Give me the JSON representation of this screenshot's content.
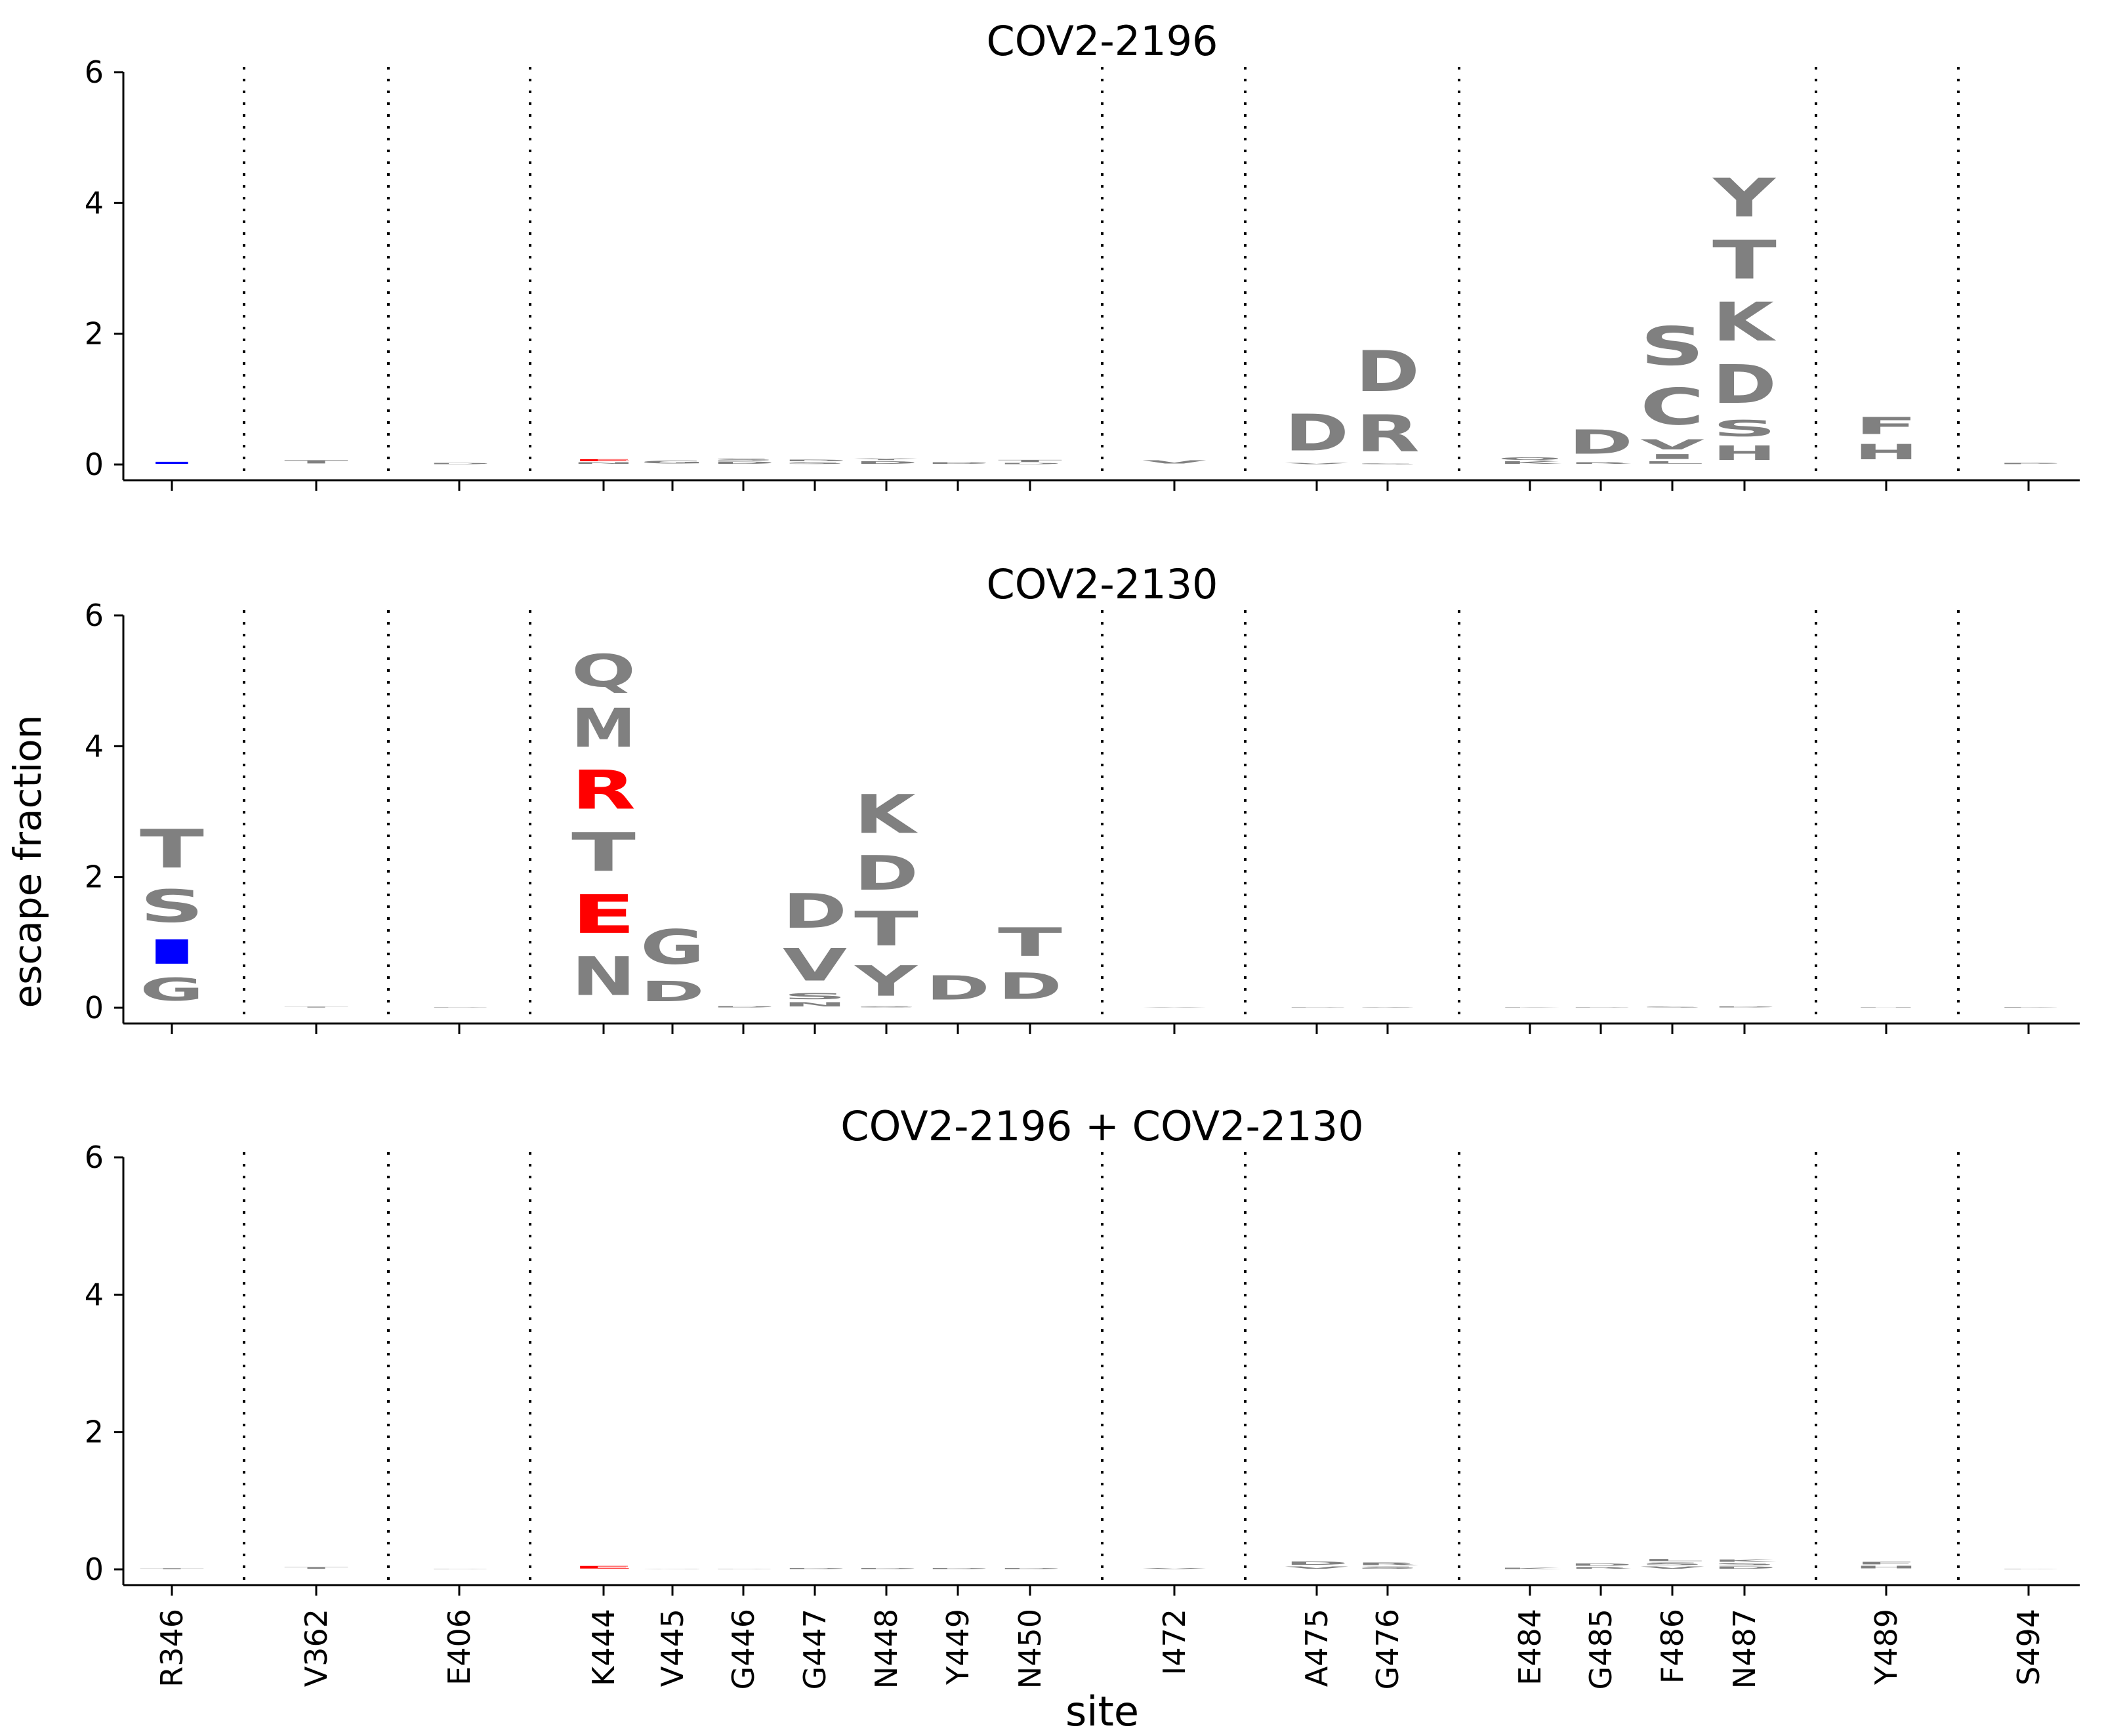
{
  "figure": {
    "ylabel": "escape fraction",
    "xlabel": "site"
  },
  "colors": {
    "default_letter": "#808080",
    "highlight_red": "#ff0000",
    "highlight_blue": "#0000ff",
    "axis": "#000000"
  },
  "chart_data": [
    {
      "type": "logo",
      "title": "COV2-2196",
      "ylim": [
        0,
        6
      ],
      "yticks": [
        0,
        2,
        4,
        6
      ],
      "sites": [
        "R346",
        "V362",
        "E406",
        "K444",
        "V445",
        "G446",
        "G447",
        "N448",
        "Y449",
        "N450",
        "I472",
        "A475",
        "G476",
        "E484",
        "G485",
        "F486",
        "N487",
        "Y489",
        "S494"
      ],
      "letters": [
        {
          "site": "R346",
          "stack": [
            {
              "aa": "I",
              "value": 0.05,
              "color": "#0000ff"
            }
          ]
        },
        {
          "site": "V362",
          "stack": [
            {
              "aa": "T",
              "value": 0.08
            }
          ]
        },
        {
          "site": "E406",
          "stack": [
            {
              "aa": "D",
              "value": 0.03
            }
          ]
        },
        {
          "site": "K444",
          "stack": [
            {
              "aa": "N",
              "value": 0.04
            },
            {
              "aa": "E",
              "value": 0.05,
              "color": "#ff0000"
            }
          ]
        },
        {
          "site": "V445",
          "stack": [
            {
              "aa": "G",
              "value": 0.07
            }
          ]
        },
        {
          "site": "G446",
          "stack": [
            {
              "aa": "D",
              "value": 0.05
            },
            {
              "aa": "S",
              "value": 0.05
            }
          ]
        },
        {
          "site": "G447",
          "stack": [
            {
              "aa": "S",
              "value": 0.04
            },
            {
              "aa": "D",
              "value": 0.04
            }
          ]
        },
        {
          "site": "N448",
          "stack": [
            {
              "aa": "D",
              "value": 0.06
            },
            {
              "aa": "Y",
              "value": 0.04
            }
          ]
        },
        {
          "site": "Y449",
          "stack": [
            {
              "aa": "D",
              "value": 0.04
            }
          ]
        },
        {
          "site": "N450",
          "stack": [
            {
              "aa": "D",
              "value": 0.03
            },
            {
              "aa": "T",
              "value": 0.05
            }
          ]
        },
        {
          "site": "I472",
          "stack": [
            {
              "aa": "V",
              "value": 0.08
            }
          ]
        },
        {
          "site": "A475",
          "stack": [
            {
              "aa": "V",
              "value": 0.03
            },
            {
              "aa": "D",
              "value": 0.9
            }
          ]
        },
        {
          "site": "G476",
          "stack": [
            {
              "aa": "S",
              "value": 0.02
            },
            {
              "aa": "R",
              "value": 0.9
            },
            {
              "aa": "D",
              "value": 1.0
            }
          ]
        },
        {
          "site": "E484",
          "stack": [
            {
              "aa": "K",
              "value": 0.06
            },
            {
              "aa": "Q",
              "value": 0.06
            }
          ]
        },
        {
          "site": "G485",
          "stack": [
            {
              "aa": "R",
              "value": 0.04
            },
            {
              "aa": "D",
              "value": 0.6
            }
          ]
        },
        {
          "site": "F486",
          "stack": [
            {
              "aa": "L",
              "value": 0.06
            },
            {
              "aa": "I",
              "value": 0.12
            },
            {
              "aa": "V",
              "value": 0.25
            },
            {
              "aa": "C",
              "value": 0.9
            },
            {
              "aa": "S",
              "value": 0.95
            }
          ]
        },
        {
          "site": "N487",
          "stack": [
            {
              "aa": "H",
              "value": 0.35
            },
            {
              "aa": "S",
              "value": 0.4
            },
            {
              "aa": "D",
              "value": 0.95
            },
            {
              "aa": "K",
              "value": 0.95
            },
            {
              "aa": "T",
              "value": 0.95
            },
            {
              "aa": "Y",
              "value": 0.95
            }
          ]
        },
        {
          "site": "Y489",
          "stack": [
            {
              "aa": "H",
              "value": 0.38
            },
            {
              "aa": "F",
              "value": 0.42
            }
          ]
        },
        {
          "site": "S494",
          "stack": [
            {
              "aa": "P",
              "value": 0.03
            }
          ]
        }
      ]
    },
    {
      "type": "logo",
      "title": "COV2-2130",
      "ylim": [
        0,
        6
      ],
      "yticks": [
        0,
        2,
        4,
        6
      ],
      "sites": [
        "R346",
        "V362",
        "E406",
        "K444",
        "V445",
        "G446",
        "G447",
        "N448",
        "Y449",
        "N450",
        "I472",
        "A475",
        "G476",
        "E484",
        "G485",
        "F486",
        "N487",
        "Y489",
        "S494"
      ],
      "letters": [
        {
          "site": "R346",
          "stack": [
            {
              "aa": "G",
              "value": 0.55
            },
            {
              "aa": "I",
              "value": 0.6,
              "color": "#0000ff"
            },
            {
              "aa": "S",
              "value": 0.8
            },
            {
              "aa": "T",
              "value": 0.95
            }
          ]
        },
        {
          "site": "V362",
          "stack": [
            {
              "aa": "T",
              "value": 0.02
            }
          ]
        },
        {
          "site": "E406",
          "stack": [
            {
              "aa": "D",
              "value": 0.01
            }
          ]
        },
        {
          "site": "K444",
          "stack": [
            {
              "aa": "N",
              "value": 0.95
            },
            {
              "aa": "E",
              "value": 0.95,
              "color": "#ff0000"
            },
            {
              "aa": "T",
              "value": 0.95
            },
            {
              "aa": "R",
              "value": 0.95,
              "color": "#ff0000"
            },
            {
              "aa": "M",
              "value": 0.95
            },
            {
              "aa": "Q",
              "value": 0.8
            }
          ]
        },
        {
          "site": "V445",
          "stack": [
            {
              "aa": "D",
              "value": 0.5
            },
            {
              "aa": "G",
              "value": 0.85
            }
          ]
        },
        {
          "site": "G446",
          "stack": [
            {
              "aa": "D",
              "value": 0.03
            }
          ]
        },
        {
          "site": "G447",
          "stack": [
            {
              "aa": "N",
              "value": 0.1
            },
            {
              "aa": "S",
              "value": 0.15
            },
            {
              "aa": "V",
              "value": 0.8
            },
            {
              "aa": "D",
              "value": 0.85
            }
          ]
        },
        {
          "site": "N448",
          "stack": [
            {
              "aa": "S",
              "value": 0.03
            },
            {
              "aa": "Y",
              "value": 0.75
            },
            {
              "aa": "T",
              "value": 0.85
            },
            {
              "aa": "D",
              "value": 0.85
            },
            {
              "aa": "K",
              "value": 0.95
            }
          ]
        },
        {
          "site": "Y449",
          "stack": [
            {
              "aa": "D",
              "value": 0.6
            }
          ]
        },
        {
          "site": "N450",
          "stack": [
            {
              "aa": "D",
              "value": 0.65
            },
            {
              "aa": "T",
              "value": 0.7
            }
          ]
        },
        {
          "site": "I472",
          "stack": [
            {
              "aa": "V",
              "value": 0.01
            }
          ]
        },
        {
          "site": "A475",
          "stack": [
            {
              "aa": "D",
              "value": 0.01
            }
          ]
        },
        {
          "site": "G476",
          "stack": [
            {
              "aa": "S",
              "value": 0.01
            }
          ]
        },
        {
          "site": "E484",
          "stack": [
            {
              "aa": "K",
              "value": 0.01
            }
          ]
        },
        {
          "site": "G485",
          "stack": [
            {
              "aa": "D",
              "value": 0.01
            }
          ]
        },
        {
          "site": "F486",
          "stack": [
            {
              "aa": "S",
              "value": 0.02
            }
          ]
        },
        {
          "site": "N487",
          "stack": [
            {
              "aa": "D",
              "value": 0.02
            }
          ]
        },
        {
          "site": "Y489",
          "stack": [
            {
              "aa": "H",
              "value": 0.005
            }
          ]
        },
        {
          "site": "S494",
          "stack": [
            {
              "aa": "P",
              "value": 0.01
            }
          ]
        }
      ]
    },
    {
      "type": "logo",
      "title": "COV2-2196 + COV2-2130",
      "ylim": [
        0,
        6
      ],
      "yticks": [
        0,
        2,
        4,
        6
      ],
      "sites": [
        "R346",
        "V362",
        "E406",
        "K444",
        "V445",
        "G446",
        "G447",
        "N448",
        "Y449",
        "N450",
        "I472",
        "A475",
        "G476",
        "E484",
        "G485",
        "F486",
        "N487",
        "Y489",
        "S494"
      ],
      "letters": [
        {
          "site": "R346",
          "stack": [
            {
              "aa": "T",
              "value": 0.02
            }
          ]
        },
        {
          "site": "V362",
          "stack": [
            {
              "aa": "T",
              "value": 0.04
            }
          ]
        },
        {
          "site": "E406",
          "stack": [
            {
              "aa": "D",
              "value": 0.01
            }
          ]
        },
        {
          "site": "K444",
          "stack": [
            {
              "aa": "E",
              "value": 0.06,
              "color": "#ff0000"
            }
          ]
        },
        {
          "site": "V445",
          "stack": [
            {
              "aa": "G",
              "value": 0.01
            }
          ]
        },
        {
          "site": "G446",
          "stack": [
            {
              "aa": "D",
              "value": 0.01
            }
          ]
        },
        {
          "site": "G447",
          "stack": [
            {
              "aa": "D",
              "value": 0.02
            }
          ]
        },
        {
          "site": "N448",
          "stack": [
            {
              "aa": "D",
              "value": 0.02
            }
          ]
        },
        {
          "site": "Y449",
          "stack": [
            {
              "aa": "D",
              "value": 0.02
            }
          ]
        },
        {
          "site": "N450",
          "stack": [
            {
              "aa": "D",
              "value": 0.02
            }
          ]
        },
        {
          "site": "I472",
          "stack": [
            {
              "aa": "V",
              "value": 0.02
            }
          ]
        },
        {
          "site": "A475",
          "stack": [
            {
              "aa": "V",
              "value": 0.05
            },
            {
              "aa": "D",
              "value": 0.08
            }
          ]
        },
        {
          "site": "G476",
          "stack": [
            {
              "aa": "S",
              "value": 0.05
            },
            {
              "aa": "R",
              "value": 0.06
            }
          ]
        },
        {
          "site": "E484",
          "stack": [
            {
              "aa": "K",
              "value": 0.03
            }
          ]
        },
        {
          "site": "G485",
          "stack": [
            {
              "aa": "R",
              "value": 0.04
            },
            {
              "aa": "D",
              "value": 0.05
            }
          ]
        },
        {
          "site": "F486",
          "stack": [
            {
              "aa": "V",
              "value": 0.05
            },
            {
              "aa": "S",
              "value": 0.06
            },
            {
              "aa": "L",
              "value": 0.05
            }
          ]
        },
        {
          "site": "N487",
          "stack": [
            {
              "aa": "D",
              "value": 0.05
            },
            {
              "aa": "S",
              "value": 0.05
            },
            {
              "aa": "K",
              "value": 0.05
            }
          ]
        },
        {
          "site": "Y489",
          "stack": [
            {
              "aa": "H",
              "value": 0.06
            },
            {
              "aa": "F",
              "value": 0.06
            }
          ]
        },
        {
          "site": "S494",
          "stack": [
            {
              "aa": "P",
              "value": 0.01
            }
          ]
        }
      ]
    }
  ]
}
